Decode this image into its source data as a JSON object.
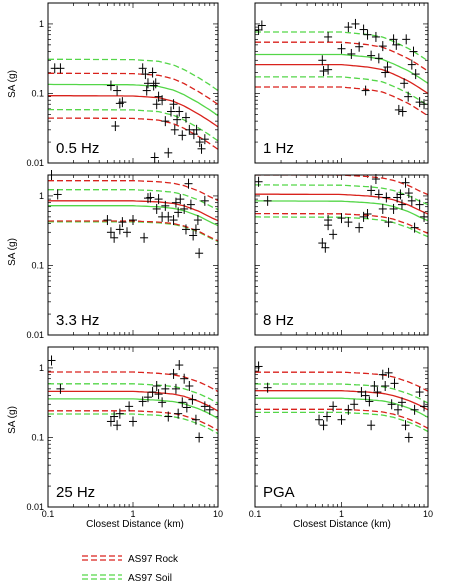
{
  "figure": {
    "ylabel": "SA (g)",
    "xlabel": "Closest Distance (km)",
    "legend": {
      "rock_label": "AS97 Rock",
      "soil_label": "AS97 Soil",
      "rock_color": "#d9221c",
      "soil_color": "#54d648"
    },
    "tick_labels": {
      "x": [
        "0.1",
        "1",
        "10"
      ],
      "y": [
        "0.01",
        "0.1",
        "1"
      ]
    }
  },
  "chart_data": [
    {
      "type": "scatter",
      "panel_label": "0.5 Hz",
      "xscale": "log",
      "yscale": "log",
      "xlim": [
        0.1,
        10
      ],
      "ylim": [
        0.01,
        2
      ],
      "observed": [
        [
          0.12,
          0.23
        ],
        [
          0.14,
          0.23
        ],
        [
          0.55,
          0.13
        ],
        [
          0.65,
          0.11
        ],
        [
          0.7,
          0.072
        ],
        [
          0.75,
          0.075
        ],
        [
          0.62,
          0.034
        ],
        [
          1.3,
          0.23
        ],
        [
          1.4,
          0.19
        ],
        [
          1.45,
          0.11
        ],
        [
          1.5,
          0.14
        ],
        [
          1.7,
          0.2
        ],
        [
          1.75,
          0.13
        ],
        [
          1.85,
          0.14
        ],
        [
          1.9,
          0.07
        ],
        [
          2.0,
          0.09
        ],
        [
          2.2,
          0.08
        ],
        [
          2.4,
          0.04
        ],
        [
          2.8,
          0.055
        ],
        [
          3.0,
          0.07
        ],
        [
          3.1,
          0.03
        ],
        [
          3.3,
          0.042
        ],
        [
          3.5,
          0.055
        ],
        [
          3.8,
          0.025
        ],
        [
          4.2,
          0.045
        ],
        [
          4.6,
          0.03
        ],
        [
          5.2,
          0.026
        ],
        [
          5.6,
          0.03
        ],
        [
          6.1,
          0.02
        ],
        [
          6.4,
          0.016
        ],
        [
          7.0,
          0.022
        ],
        [
          1.8,
          0.012
        ],
        [
          2.6,
          0.014
        ]
      ],
      "rock_median": [
        [
          0.1,
          0.093
        ],
        [
          1,
          0.092
        ],
        [
          2,
          0.087
        ],
        [
          3,
          0.077
        ],
        [
          4,
          0.066
        ],
        [
          6,
          0.05
        ],
        [
          8,
          0.04
        ],
        [
          10,
          0.033
        ]
      ],
      "rock_sigma_factor": 2.1,
      "soil_offset_factor": 1.45,
      "soil_sigma_factor": 2.3
    },
    {
      "type": "scatter",
      "panel_label": "1 Hz",
      "xscale": "log",
      "yscale": "log",
      "xlim": [
        0.1,
        10
      ],
      "ylim": [
        0.01,
        2
      ],
      "observed": [
        [
          0.11,
          0.82
        ],
        [
          0.12,
          0.95
        ],
        [
          0.6,
          0.3
        ],
        [
          0.62,
          0.21
        ],
        [
          0.7,
          0.22
        ],
        [
          0.7,
          0.65
        ],
        [
          1.0,
          0.44
        ],
        [
          1.2,
          0.9
        ],
        [
          1.3,
          0.37
        ],
        [
          1.45,
          1.0
        ],
        [
          1.6,
          0.47
        ],
        [
          1.8,
          0.83
        ],
        [
          1.9,
          0.11
        ],
        [
          2.0,
          0.7
        ],
        [
          2.2,
          0.35
        ],
        [
          2.5,
          0.65
        ],
        [
          2.7,
          0.32
        ],
        [
          3.0,
          0.48
        ],
        [
          3.2,
          0.2
        ],
        [
          3.4,
          0.24
        ],
        [
          4.0,
          0.6
        ],
        [
          4.3,
          0.5
        ],
        [
          4.6,
          0.058
        ],
        [
          5.1,
          0.055
        ],
        [
          5.3,
          0.14
        ],
        [
          5.6,
          0.6
        ],
        [
          5.9,
          0.09
        ],
        [
          6.5,
          0.26
        ],
        [
          7.2,
          0.19
        ],
        [
          8.0,
          0.075
        ],
        [
          9.0,
          0.07
        ],
        [
          6.8,
          0.4
        ]
      ],
      "rock_median": [
        [
          0.1,
          0.26
        ],
        [
          1,
          0.26
        ],
        [
          2,
          0.24
        ],
        [
          3,
          0.22
        ],
        [
          4,
          0.19
        ],
        [
          6,
          0.15
        ],
        [
          8,
          0.12
        ],
        [
          10,
          0.1
        ]
      ],
      "rock_sigma_factor": 2.1,
      "soil_offset_factor": 1.4,
      "soil_sigma_factor": 2.1
    },
    {
      "type": "scatter",
      "panel_label": "3.3 Hz",
      "xscale": "log",
      "yscale": "log",
      "xlim": [
        0.1,
        10
      ],
      "ylim": [
        0.01,
        2
      ],
      "observed": [
        [
          0.11,
          2.0
        ],
        [
          0.13,
          1.05
        ],
        [
          0.5,
          0.45
        ],
        [
          0.55,
          0.3
        ],
        [
          0.6,
          0.25
        ],
        [
          0.7,
          0.33
        ],
        [
          0.75,
          0.42
        ],
        [
          0.85,
          0.3
        ],
        [
          1.0,
          0.45
        ],
        [
          1.5,
          0.93
        ],
        [
          1.6,
          0.95
        ],
        [
          1.9,
          0.65
        ],
        [
          2.0,
          0.9
        ],
        [
          2.2,
          0.5
        ],
        [
          2.4,
          0.72
        ],
        [
          2.6,
          0.5
        ],
        [
          3.0,
          0.45
        ],
        [
          3.2,
          0.8
        ],
        [
          3.4,
          0.58
        ],
        [
          3.6,
          0.9
        ],
        [
          4.0,
          0.65
        ],
        [
          4.2,
          0.33
        ],
        [
          4.5,
          1.5
        ],
        [
          4.8,
          0.75
        ],
        [
          5.1,
          0.27
        ],
        [
          5.5,
          0.33
        ],
        [
          5.8,
          0.45
        ],
        [
          6.0,
          0.15
        ],
        [
          7.0,
          0.85
        ],
        [
          1.35,
          0.25
        ]
      ],
      "rock_median": [
        [
          0.1,
          0.85
        ],
        [
          1,
          0.85
        ],
        [
          2,
          0.82
        ],
        [
          3,
          0.78
        ],
        [
          4,
          0.72
        ],
        [
          6,
          0.6
        ],
        [
          8,
          0.5
        ],
        [
          10,
          0.44
        ]
      ],
      "rock_sigma_factor": 1.95,
      "soil_offset_factor": 0.85,
      "soil_sigma_factor": 1.7
    },
    {
      "type": "scatter",
      "panel_label": "8 Hz",
      "xscale": "log",
      "yscale": "log",
      "xlim": [
        0.1,
        10
      ],
      "ylim": [
        0.01,
        2
      ],
      "observed": [
        [
          0.11,
          1.6
        ],
        [
          0.14,
          0.85
        ],
        [
          0.6,
          0.21
        ],
        [
          0.65,
          0.18
        ],
        [
          0.7,
          0.45
        ],
        [
          0.7,
          0.38
        ],
        [
          0.8,
          0.28
        ],
        [
          1.0,
          0.48
        ],
        [
          1.2,
          0.42
        ],
        [
          1.6,
          0.35
        ],
        [
          1.8,
          0.5
        ],
        [
          2.0,
          0.55
        ],
        [
          2.2,
          1.2
        ],
        [
          2.5,
          1.75
        ],
        [
          2.7,
          1.05
        ],
        [
          3.0,
          0.65
        ],
        [
          3.3,
          0.95
        ],
        [
          3.5,
          0.42
        ],
        [
          4.0,
          0.65
        ],
        [
          4.4,
          0.95
        ],
        [
          4.8,
          1.05
        ],
        [
          5.0,
          0.75
        ],
        [
          5.5,
          1.55
        ],
        [
          6.0,
          1.1
        ],
        [
          6.5,
          0.85
        ],
        [
          7.0,
          0.35
        ],
        [
          8.0,
          0.75
        ],
        [
          9.0,
          0.5
        ]
      ],
      "rock_median": [
        [
          0.1,
          1.06
        ],
        [
          1,
          1.05
        ],
        [
          2,
          1.0
        ],
        [
          3,
          0.95
        ],
        [
          4,
          0.88
        ],
        [
          6,
          0.74
        ],
        [
          8,
          0.62
        ],
        [
          10,
          0.55
        ]
      ],
      "rock_sigma_factor": 1.9,
      "soil_offset_factor": 0.8,
      "soil_sigma_factor": 1.7
    },
    {
      "type": "scatter",
      "panel_label": "25 Hz",
      "xscale": "log",
      "yscale": "log",
      "xlim": [
        0.1,
        10
      ],
      "ylim": [
        0.01,
        2
      ],
      "observed": [
        [
          0.11,
          1.28
        ],
        [
          0.14,
          0.5
        ],
        [
          0.55,
          0.17
        ],
        [
          0.6,
          0.2
        ],
        [
          0.65,
          0.15
        ],
        [
          0.7,
          0.22
        ],
        [
          0.9,
          0.28
        ],
        [
          1.0,
          0.17
        ],
        [
          1.3,
          0.33
        ],
        [
          1.5,
          0.38
        ],
        [
          1.7,
          0.45
        ],
        [
          1.9,
          0.55
        ],
        [
          2.0,
          0.42
        ],
        [
          2.2,
          0.32
        ],
        [
          2.4,
          0.5
        ],
        [
          2.6,
          0.2
        ],
        [
          3.0,
          0.82
        ],
        [
          3.2,
          0.5
        ],
        [
          3.5,
          1.1
        ],
        [
          3.8,
          0.32
        ],
        [
          4.0,
          0.7
        ],
        [
          4.3,
          0.27
        ],
        [
          4.6,
          0.55
        ],
        [
          5.0,
          0.35
        ],
        [
          5.5,
          0.18
        ],
        [
          6.0,
          0.1
        ],
        [
          7.0,
          0.28
        ],
        [
          8.0,
          0.25
        ],
        [
          3.4,
          0.22
        ]
      ],
      "rock_median": [
        [
          0.1,
          0.46
        ],
        [
          1,
          0.46
        ],
        [
          2,
          0.44
        ],
        [
          3,
          0.42
        ],
        [
          4,
          0.39
        ],
        [
          6,
          0.33
        ],
        [
          8,
          0.28
        ],
        [
          10,
          0.24
        ]
      ],
      "rock_sigma_factor": 1.9,
      "soil_offset_factor": 0.78,
      "soil_sigma_factor": 1.65
    },
    {
      "type": "scatter",
      "panel_label": "PGA",
      "xscale": "log",
      "yscale": "log",
      "xlim": [
        0.1,
        10
      ],
      "ylim": [
        0.01,
        2
      ],
      "observed": [
        [
          0.11,
          1.05
        ],
        [
          0.14,
          0.52
        ],
        [
          0.55,
          0.18
        ],
        [
          0.62,
          0.15
        ],
        [
          0.68,
          0.2
        ],
        [
          0.8,
          0.28
        ],
        [
          1.0,
          0.18
        ],
        [
          1.2,
          0.25
        ],
        [
          1.4,
          0.3
        ],
        [
          1.7,
          0.45
        ],
        [
          1.9,
          0.4
        ],
        [
          2.1,
          0.33
        ],
        [
          2.4,
          0.55
        ],
        [
          2.6,
          0.45
        ],
        [
          3.0,
          0.8
        ],
        [
          3.2,
          0.55
        ],
        [
          3.5,
          0.85
        ],
        [
          3.8,
          0.3
        ],
        [
          4.1,
          0.6
        ],
        [
          4.5,
          0.25
        ],
        [
          5.0,
          0.32
        ],
        [
          5.5,
          0.15
        ],
        [
          6.0,
          0.1
        ],
        [
          7.0,
          0.25
        ],
        [
          8.0,
          0.45
        ],
        [
          9.0,
          0.28
        ],
        [
          2.2,
          0.15
        ]
      ],
      "rock_median": [
        [
          0.1,
          0.47
        ],
        [
          1,
          0.47
        ],
        [
          2,
          0.45
        ],
        [
          3,
          0.43
        ],
        [
          4,
          0.4
        ],
        [
          6,
          0.34
        ],
        [
          8,
          0.29
        ],
        [
          10,
          0.25
        ]
      ],
      "rock_sigma_factor": 1.85,
      "soil_offset_factor": 0.78,
      "soil_sigma_factor": 1.6
    }
  ]
}
